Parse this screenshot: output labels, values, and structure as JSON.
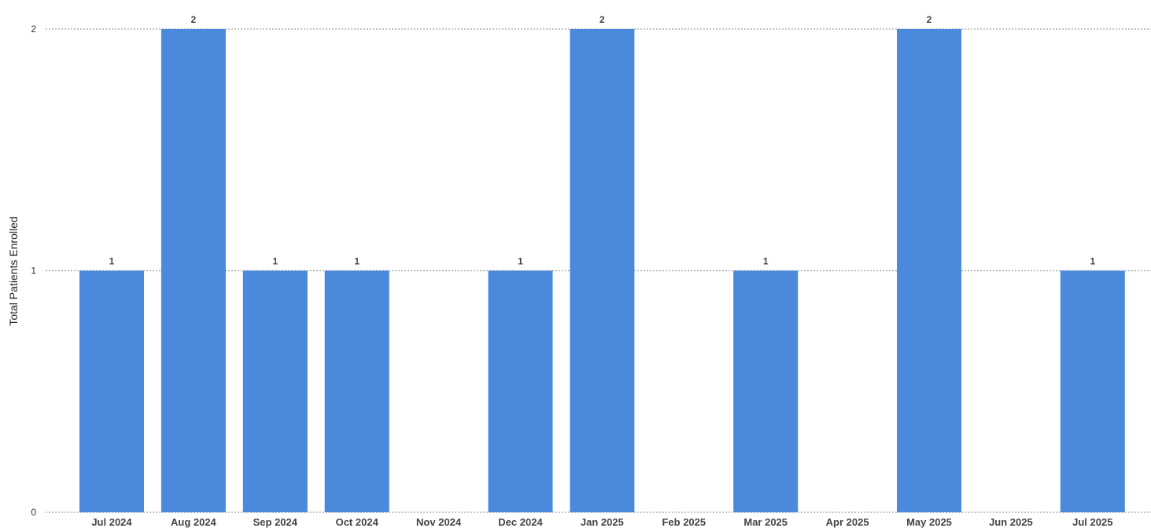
{
  "chart_data": {
    "type": "bar",
    "title": "",
    "xlabel": "",
    "ylabel": "Total Patients Enrolled",
    "categories": [
      "Jul 2024",
      "Aug 2024",
      "Sep 2024",
      "Oct 2024",
      "Nov 2024",
      "Dec 2024",
      "Jan 2025",
      "Feb 2025",
      "Mar 2025",
      "Apr 2025",
      "May 2025",
      "Jun 2025",
      "Jul 2025"
    ],
    "values": [
      1,
      2,
      1,
      1,
      0,
      1,
      2,
      0,
      1,
      0,
      2,
      0,
      1
    ],
    "data_labels": [
      "1",
      "2",
      "1",
      "1",
      "",
      "1",
      "2",
      "",
      "1",
      "",
      "2",
      "",
      "1"
    ],
    "ylim": [
      0,
      2
    ],
    "yticks": [
      0,
      1,
      2
    ],
    "grid": true,
    "bar_color": "#4a89dc",
    "grid_color": "#b0b0b0"
  }
}
